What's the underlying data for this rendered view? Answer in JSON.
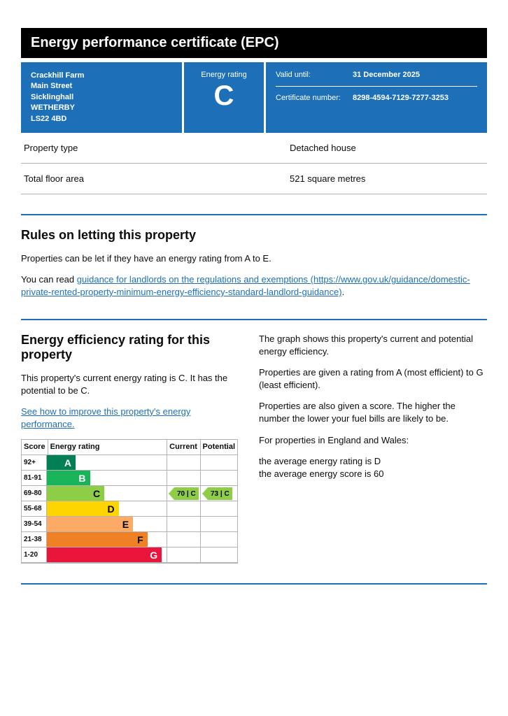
{
  "title": "Energy performance certificate (EPC)",
  "address": {
    "line1": "Crackhill Farm",
    "line2": "Main Street",
    "line3": "Sicklinghall",
    "town": "WETHERBY",
    "postcode": "LS22 4BD"
  },
  "rating": {
    "label": "Energy rating",
    "letter": "C"
  },
  "meta": {
    "valid_label": "Valid until:",
    "valid_value": "31 December 2025",
    "cert_label": "Certificate number:",
    "cert_value": "8298-4594-7129-7277-3253"
  },
  "kv": [
    {
      "k": "Property type",
      "v": "Detached house"
    },
    {
      "k": "Total floor area",
      "v": "521 square metres"
    }
  ],
  "letting": {
    "heading": "Rules on letting this property",
    "p1": "Properties can be let if they have an energy rating from A to E.",
    "p2_pre": "You can read ",
    "p2_link": "guidance for landlords on the regulations and exemptions (https://www.gov.uk/guidance/domestic-private-rented-property-minimum-energy-efficiency-standard-landlord-guidance)",
    "p2_post": "."
  },
  "eff": {
    "heading": "Energy efficiency rating for this property",
    "p1": "This property's current energy rating is C. It has the potential to be C.",
    "link": "See how to improve this property's energy performance."
  },
  "right": {
    "p1": "The graph shows this property's current and potential energy efficiency.",
    "p2": "Properties are given a rating from A (most efficient) to G (least efficient).",
    "p3": "Properties are also given a score. The higher the number the lower your fuel bills are likely to be.",
    "p4": "For properties in England and Wales:",
    "p5a": "the average energy rating is D",
    "p5b": "the average energy score is 60"
  },
  "chart": {
    "head": {
      "score": "Score",
      "rating": "Energy rating",
      "current": "Current",
      "potential": "Potential"
    },
    "bands": [
      {
        "score": "92+",
        "letter": "A",
        "color": "#008054",
        "width_pct": 24,
        "text_white": true
      },
      {
        "score": "81-91",
        "letter": "B",
        "color": "#19b459",
        "width_pct": 36,
        "text_white": true
      },
      {
        "score": "69-80",
        "letter": "C",
        "color": "#8dce46",
        "width_pct": 48,
        "text_white": false
      },
      {
        "score": "55-68",
        "letter": "D",
        "color": "#ffd500",
        "width_pct": 60,
        "text_white": false
      },
      {
        "score": "39-54",
        "letter": "E",
        "color": "#fcaa65",
        "width_pct": 72,
        "text_white": false
      },
      {
        "score": "21-38",
        "letter": "F",
        "color": "#ef8023",
        "width_pct": 84,
        "text_white": false
      },
      {
        "score": "1-20",
        "letter": "G",
        "color": "#e9153b",
        "width_pct": 96,
        "text_white": true
      }
    ],
    "current": {
      "band_index": 2,
      "text": "70 | C",
      "color": "#8dce46"
    },
    "potential": {
      "band_index": 2,
      "text": "73 | C",
      "color": "#8dce46"
    }
  },
  "colors": {
    "brand": "#1d70b8"
  }
}
